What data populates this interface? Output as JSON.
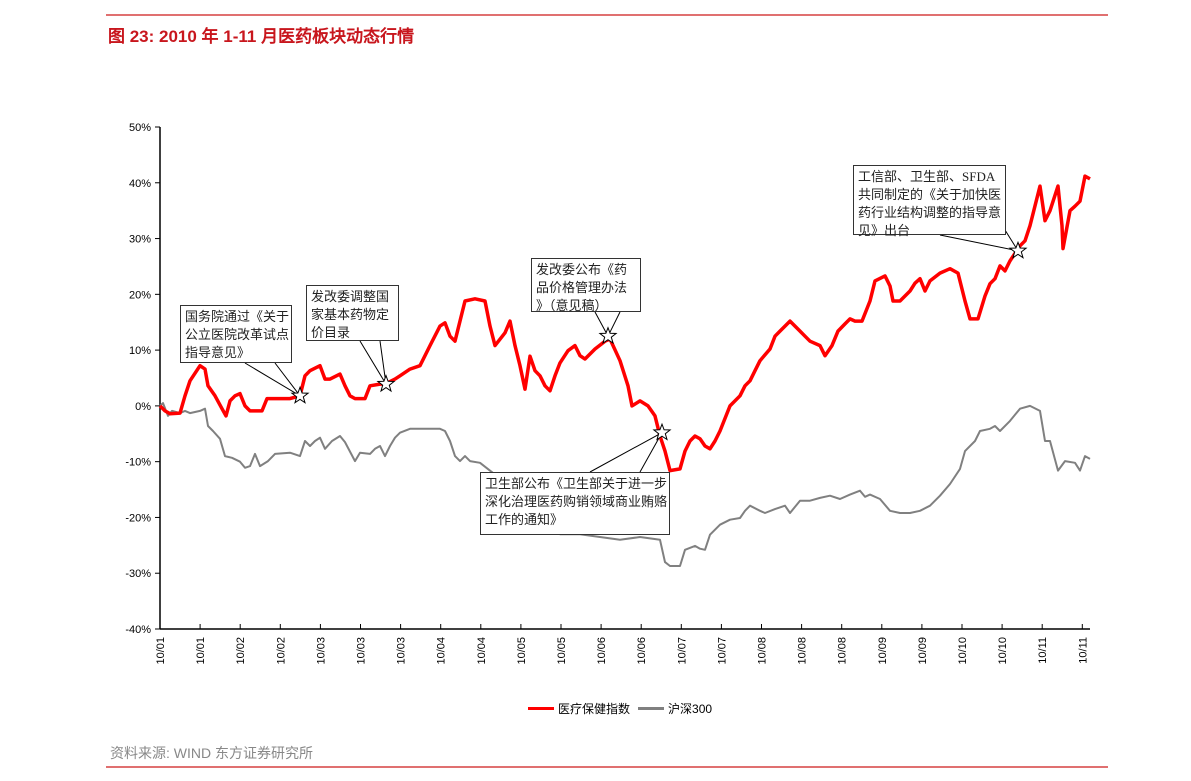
{
  "title": "图 23: 2010 年 1-11 月医药板块动态行情",
  "source": "资料来源: WIND  东方证券研究所",
  "chart_data": {
    "type": "line",
    "title": "图 23: 2010 年 1-11 月医药板块动态行情",
    "xlabel": "",
    "ylabel": "",
    "xlim": [
      0,
      93
    ],
    "ylim": [
      -40,
      50
    ],
    "y_ticks": [
      "50%",
      "40%",
      "30%",
      "20%",
      "10%",
      "0%",
      "-10%",
      "-20%",
      "-30%",
      "-40%"
    ],
    "y_tick_values": [
      50,
      40,
      30,
      20,
      10,
      0,
      -10,
      -20,
      -30,
      -40
    ],
    "x_tick_labels": [
      "10/01",
      "10/01",
      "10/02",
      "10/02",
      "10/03",
      "10/03",
      "10/03",
      "10/04",
      "10/04",
      "10/05",
      "10/05",
      "10/06",
      "10/06",
      "10/07",
      "10/07",
      "10/08",
      "10/08",
      "10/08",
      "10/09",
      "10/09",
      "10/10",
      "10/10",
      "10/11",
      "10/11"
    ],
    "grid": false,
    "legend_position": "bottom",
    "series": [
      {
        "name": "医疗保健指数",
        "color": "#ff0000",
        "x": [
          0,
          0.5,
          1,
          2,
          2.5,
          3,
          4,
          4.5,
          4.8,
          5.5,
          6.2,
          6.6,
          7,
          7.5,
          8,
          8.5,
          9,
          9.5,
          10.2,
          10.7,
          11.2,
          13,
          14,
          14.5,
          15,
          16,
          16.5,
          17,
          18,
          18.5,
          19,
          19.5,
          20.5,
          21,
          22,
          22.5,
          23.5,
          24,
          25,
          26,
          27,
          28,
          28.5,
          29,
          29.5,
          30,
          30.5,
          31.5,
          32.5,
          33,
          33.5,
          34.5,
          35,
          35.5,
          36,
          36.5,
          37,
          37.5,
          38,
          38.5,
          39,
          39.5,
          40,
          40.8,
          41.5,
          42,
          42.5,
          43.5,
          44.5,
          45,
          46,
          46.8,
          47.2,
          48,
          48.8,
          49.5,
          50,
          50.5,
          51,
          52,
          52.5,
          53,
          53.5,
          54,
          54.5,
          55,
          55.5,
          56,
          57,
          58,
          58.5,
          59,
          59.5,
          60,
          61,
          61.5,
          62,
          63,
          64,
          64.5,
          65,
          66,
          66.5,
          67.2,
          67.8,
          68.5,
          69,
          69.5,
          70.2,
          71,
          71.5,
          72.5,
          73,
          73.3,
          74,
          75,
          75.5,
          76,
          76.5,
          77,
          78,
          79,
          79.8,
          80.5,
          81,
          81.8,
          82.5,
          83,
          83.5,
          84,
          84.5,
          85,
          86,
          86.5,
          87,
          88,
          88.5,
          89,
          89.8,
          90.2,
          90.3,
          91,
          91.5,
          92,
          92.5,
          93
        ],
        "values": [
          0,
          -0.9,
          -1.4,
          -1.3,
          1.8,
          4.5,
          7.2,
          6.6,
          3.6,
          1.8,
          -0.5,
          -1.8,
          0.9,
          1.8,
          2.2,
          0,
          -0.9,
          -0.9,
          -0.9,
          1.3,
          1.3,
          1.3,
          1.8,
          5.4,
          6.3,
          7.2,
          4.8,
          4.8,
          5.7,
          3.6,
          1.8,
          1.3,
          1.3,
          3.6,
          3.9,
          3.9,
          4.8,
          5.4,
          6.6,
          7.2,
          10.8,
          14.3,
          14.9,
          12.5,
          11.6,
          15.2,
          18.8,
          19.2,
          18.8,
          14.3,
          10.8,
          13.1,
          15.2,
          10.8,
          7.2,
          3.0,
          8.9,
          6.3,
          5.4,
          3.6,
          2.7,
          5.4,
          7.7,
          9.9,
          10.8,
          9.0,
          8.4,
          10.2,
          11.6,
          12.0,
          8.1,
          3.6,
          0,
          0.9,
          0,
          -1.8,
          -5.4,
          -8.1,
          -11.6,
          -11.3,
          -8.1,
          -6.3,
          -5.4,
          -5.9,
          -7.2,
          -7.7,
          -6.3,
          -4.5,
          0,
          1.8,
          3.6,
          4.5,
          6.3,
          8.1,
          10.2,
          12.5,
          13.4,
          15.2,
          13.4,
          12.5,
          11.6,
          10.8,
          9.0,
          10.8,
          13.4,
          14.7,
          15.6,
          15.2,
          15.2,
          18.8,
          22.4,
          23.3,
          21.5,
          18.8,
          18.8,
          20.6,
          22.0,
          22.8,
          20.6,
          22.4,
          23.8,
          24.6,
          23.8,
          18.8,
          15.6,
          15.6,
          19.7,
          21.9,
          22.8,
          25.1,
          24.2,
          26.0,
          28.7,
          29.6,
          32.3,
          39.4,
          33.2,
          35.0,
          39.4,
          32.3,
          28.2,
          35.0,
          35.8,
          36.7,
          41.2,
          40.7
        ]
      },
      {
        "name": "沪深300",
        "color": "#808080",
        "x": [
          0,
          0.3,
          0.8,
          1.2,
          2,
          2.5,
          3,
          4,
          4.5,
          4.8,
          5.3,
          6,
          6.5,
          7.2,
          8,
          8.5,
          9,
          9.5,
          10,
          10.8,
          11.5,
          13,
          14,
          14.5,
          15,
          15.5,
          16,
          16.5,
          17.2,
          18,
          18.5,
          19.5,
          20,
          21,
          21.5,
          22,
          22.5,
          23,
          23.5,
          24,
          25,
          26,
          28,
          28.5,
          29,
          29.5,
          30,
          30.5,
          31,
          32,
          34,
          36,
          38,
          40,
          42,
          44,
          46,
          48,
          50,
          50.5,
          51,
          52,
          52.5,
          53.5,
          54,
          54.5,
          55,
          56,
          57,
          58,
          58.5,
          59,
          60,
          60.5,
          61.5,
          62.5,
          63,
          64,
          65,
          66,
          67,
          68,
          69,
          70,
          70.5,
          71,
          72,
          73,
          74,
          75,
          76,
          77,
          78,
          79,
          80,
          80.5,
          81.5,
          82,
          83,
          83.5,
          84,
          85,
          86,
          87,
          88,
          88.5,
          89,
          89.8,
          90.5,
          91.5,
          92,
          92.5,
          93
        ],
        "values": [
          0,
          0.5,
          -1.8,
          -0.9,
          -1.3,
          -0.9,
          -1.3,
          -0.9,
          -0.5,
          -3.6,
          -4.5,
          -5.9,
          -9.0,
          -9.3,
          -10.0,
          -11.1,
          -10.8,
          -8.6,
          -10.8,
          -9.9,
          -8.6,
          -8.4,
          -9.0,
          -6.3,
          -7.2,
          -6.3,
          -5.7,
          -7.7,
          -6.3,
          -5.4,
          -6.5,
          -9.9,
          -8.4,
          -8.6,
          -7.7,
          -7.2,
          -9.0,
          -7.2,
          -5.7,
          -4.8,
          -4.1,
          -4.1,
          -4.1,
          -4.5,
          -6.3,
          -9.0,
          -9.9,
          -9.0,
          -9.9,
          -10.2,
          -13,
          -17,
          -20,
          -23,
          -23,
          -23.5,
          -24,
          -23.5,
          -24,
          -28.0,
          -28.7,
          -28.7,
          -25.8,
          -25.1,
          -25.6,
          -25.8,
          -23.1,
          -21.3,
          -20.4,
          -20.1,
          -18.8,
          -17.9,
          -18.8,
          -19.2,
          -18.5,
          -17.9,
          -19.2,
          -17.0,
          -17.0,
          -16.5,
          -16.1,
          -16.7,
          -15.9,
          -15.2,
          -16.3,
          -15.9,
          -16.7,
          -18.8,
          -19.2,
          -19.2,
          -18.8,
          -17.9,
          -16.1,
          -14.0,
          -11.3,
          -8.1,
          -6.3,
          -4.5,
          -4.1,
          -3.6,
          -4.5,
          -2.7,
          -0.5,
          0,
          -0.9,
          -6.3,
          -6.3,
          -11.6,
          -9.9,
          -10.2,
          -11.6,
          -9.0,
          -9.5
        ]
      }
    ],
    "annotations": [
      {
        "x": 14,
        "y": 1.8,
        "marker": "star",
        "text": [
          "国务院通过《关于",
          "公立医院改革试点",
          "指导意见》"
        ]
      },
      {
        "x": 22.6,
        "y": 3.9,
        "marker": "star",
        "text": [
          "发改委调整国",
          "家基本药物定",
          "价目录"
        ]
      },
      {
        "x": 44.8,
        "y": 12.5,
        "marker": "star",
        "text": [
          "发改委公布《药",
          "品价格管理办法",
          "》（意见稿）"
        ]
      },
      {
        "x": 50.2,
        "y": -4.8,
        "marker": "star",
        "text": [
          "卫生部公布《卫生部关于进一步",
          "深化治理医药购销领域商业贿赂",
          "工作的通知》"
        ]
      },
      {
        "x": 85.8,
        "y": 27.8,
        "marker": "star",
        "text": [
          "工信部、卫生部、SFDA",
          "共同制定的《关于加快医",
          "药行业结构调整的指导意",
          "见》出台"
        ]
      }
    ]
  }
}
